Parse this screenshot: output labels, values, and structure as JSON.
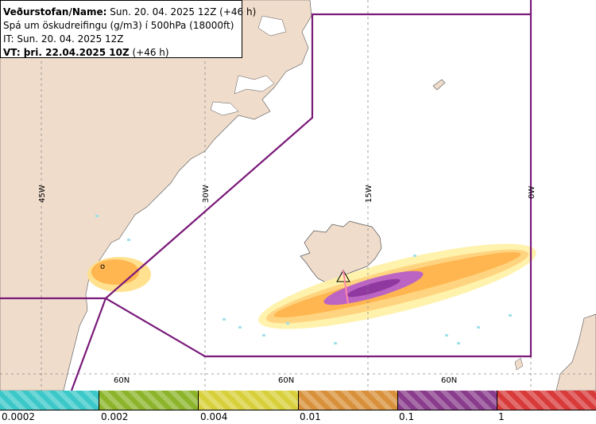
{
  "info": {
    "line1_label": "Veðurstofan/Name:",
    "line1_value": " Sun. 20. 04. 2025 12Z (+46 h)",
    "line2": "Spá um öskudreifingu (g/m3) í 500hPa (18000ft)",
    "line3": "IT: Sun. 20. 04. 2025 12Z",
    "line4_label": "VT: þri. 22.04.2025 10Z",
    "line4_value": " (+46 h)"
  },
  "grid_labels": {
    "lon_45": "45W",
    "lon_30": "30W",
    "lon_15": "15W",
    "lon_0": "0W",
    "lat_a": "60N",
    "lat_b": "60N",
    "lat_c": "60N"
  },
  "point_label": "o",
  "legend": {
    "labels": [
      "0.0002",
      "0.002",
      "0.004",
      "0.01",
      "0.1",
      "1"
    ],
    "colors": [
      "#3cc8c8",
      "#8cb42a",
      "#d8d03a",
      "#d8903a",
      "#8a3c8c",
      "#d83a3a"
    ]
  },
  "colors": {
    "land": "#f0dccb",
    "sea": "#ffffff",
    "region_border": "#7a1a7a",
    "ash_light": "#ffd27a",
    "ash_mid": "#ffb347",
    "ash_heavy": "#b85cc0",
    "ash_core": "#8a2e9a"
  }
}
